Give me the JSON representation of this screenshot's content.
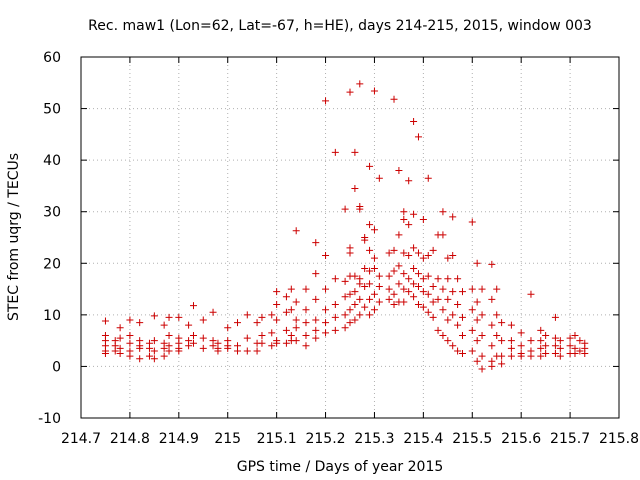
{
  "chart_data": {
    "type": "scatter",
    "title": "Rec. maw1 (Lon=62, Lat=-67, h=HE), days 214-215, 2015, window 003",
    "xlabel": "GPS time / Days of year 2015",
    "ylabel": "STEC from uqrg / TECUs",
    "xlim": [
      214.7,
      215.8
    ],
    "ylim": [
      -10,
      60
    ],
    "xticks": [
      "214.7",
      "214.8",
      "214.9",
      "215",
      "215.1",
      "215.2",
      "215.3",
      "215.4",
      "215.5",
      "215.6",
      "215.7",
      "215.8"
    ],
    "yticks": [
      "-10",
      "0",
      "10",
      "20",
      "30",
      "40",
      "50",
      "60"
    ],
    "grid": true,
    "marker": "plus",
    "color": "#cc0000",
    "series": [
      {
        "points": [
          [
            214.75,
            8.8
          ],
          [
            214.75,
            6
          ],
          [
            214.75,
            5
          ],
          [
            214.75,
            4
          ],
          [
            214.75,
            3
          ],
          [
            214.75,
            2.5
          ],
          [
            214.77,
            5
          ],
          [
            214.77,
            4
          ],
          [
            214.77,
            3
          ],
          [
            214.78,
            7.5
          ],
          [
            214.78,
            5.5
          ],
          [
            214.78,
            3.5
          ],
          [
            214.78,
            2.5
          ],
          [
            214.8,
            9
          ],
          [
            214.8,
            6
          ],
          [
            214.8,
            4.5
          ],
          [
            214.8,
            3
          ],
          [
            214.8,
            2
          ],
          [
            214.82,
            8.5
          ],
          [
            214.82,
            5
          ],
          [
            214.82,
            4
          ],
          [
            214.82,
            3.5
          ],
          [
            214.82,
            1.5
          ],
          [
            214.84,
            4.5
          ],
          [
            214.84,
            3.5
          ],
          [
            214.84,
            2
          ],
          [
            214.85,
            9.8
          ],
          [
            214.85,
            5
          ],
          [
            214.85,
            3
          ],
          [
            214.85,
            1.5
          ],
          [
            214.87,
            8
          ],
          [
            214.87,
            4.5
          ],
          [
            214.87,
            3.5
          ],
          [
            214.87,
            2
          ],
          [
            214.88,
            9.5
          ],
          [
            214.88,
            6
          ],
          [
            214.88,
            4
          ],
          [
            214.88,
            3
          ],
          [
            214.9,
            9.5
          ],
          [
            214.9,
            5.5
          ],
          [
            214.9,
            4.5
          ],
          [
            214.9,
            3.5
          ],
          [
            214.9,
            3
          ],
          [
            214.92,
            8
          ],
          [
            214.92,
            5
          ],
          [
            214.92,
            4
          ],
          [
            214.93,
            11.8
          ],
          [
            214.93,
            6
          ],
          [
            214.93,
            4.5
          ],
          [
            214.95,
            9
          ],
          [
            214.95,
            5.5
          ],
          [
            214.95,
            3.5
          ],
          [
            214.97,
            10.5
          ],
          [
            214.97,
            5
          ],
          [
            214.97,
            4
          ],
          [
            214.98,
            4.5
          ],
          [
            214.98,
            3.5
          ],
          [
            214.98,
            3
          ],
          [
            215.0,
            7.5
          ],
          [
            215.0,
            5
          ],
          [
            215.0,
            4
          ],
          [
            215.0,
            3.5
          ],
          [
            215.02,
            8.5
          ],
          [
            215.02,
            4
          ],
          [
            215.02,
            3
          ],
          [
            215.04,
            10
          ],
          [
            215.04,
            5.5
          ],
          [
            215.04,
            3
          ],
          [
            215.06,
            8.5
          ],
          [
            215.06,
            4.5
          ],
          [
            215.06,
            3
          ],
          [
            215.07,
            9.5
          ],
          [
            215.07,
            6
          ],
          [
            215.07,
            4.5
          ],
          [
            215.09,
            10
          ],
          [
            215.09,
            6.5
          ],
          [
            215.09,
            4
          ],
          [
            215.1,
            14.5
          ],
          [
            215.1,
            12
          ],
          [
            215.1,
            9
          ],
          [
            215.1,
            5
          ],
          [
            215.1,
            4.5
          ],
          [
            215.12,
            13.5
          ],
          [
            215.12,
            10.5
          ],
          [
            215.12,
            7
          ],
          [
            215.12,
            4.5
          ],
          [
            215.13,
            15
          ],
          [
            215.13,
            11
          ],
          [
            215.13,
            6
          ],
          [
            215.13,
            5
          ],
          [
            215.14,
            26.3
          ],
          [
            215.14,
            12.5
          ],
          [
            215.14,
            9
          ],
          [
            215.14,
            7.5
          ],
          [
            215.14,
            5
          ],
          [
            215.16,
            15
          ],
          [
            215.16,
            11
          ],
          [
            215.16,
            8.5
          ],
          [
            215.16,
            6
          ],
          [
            215.16,
            4
          ],
          [
            215.18,
            24
          ],
          [
            215.18,
            18
          ],
          [
            215.18,
            13
          ],
          [
            215.18,
            9
          ],
          [
            215.18,
            7
          ],
          [
            215.18,
            5.5
          ],
          [
            215.2,
            51.5
          ],
          [
            215.2,
            21.5
          ],
          [
            215.2,
            15
          ],
          [
            215.2,
            11
          ],
          [
            215.2,
            8.5
          ],
          [
            215.2,
            6.5
          ],
          [
            215.22,
            41.5
          ],
          [
            215.22,
            17
          ],
          [
            215.22,
            12
          ],
          [
            215.22,
            9.5
          ],
          [
            215.22,
            7
          ],
          [
            215.24,
            30.5
          ],
          [
            215.24,
            16.5
          ],
          [
            215.24,
            13.5
          ],
          [
            215.24,
            10
          ],
          [
            215.24,
            7.5
          ],
          [
            215.25,
            53.2
          ],
          [
            215.25,
            23
          ],
          [
            215.25,
            22
          ],
          [
            215.25,
            17.5
          ],
          [
            215.25,
            14
          ],
          [
            215.25,
            11
          ],
          [
            215.25,
            8.5
          ],
          [
            215.26,
            41.5
          ],
          [
            215.26,
            34.5
          ],
          [
            215.26,
            17.5
          ],
          [
            215.26,
            14.5
          ],
          [
            215.26,
            12
          ],
          [
            215.26,
            9
          ],
          [
            215.27,
            54.8
          ],
          [
            215.27,
            31
          ],
          [
            215.27,
            30.5
          ],
          [
            215.27,
            17
          ],
          [
            215.27,
            16
          ],
          [
            215.27,
            13
          ],
          [
            215.27,
            10
          ],
          [
            215.28,
            25
          ],
          [
            215.28,
            24.5
          ],
          [
            215.28,
            19
          ],
          [
            215.28,
            15.5
          ],
          [
            215.28,
            11.5
          ],
          [
            215.29,
            38.8
          ],
          [
            215.29,
            27.5
          ],
          [
            215.29,
            22.5
          ],
          [
            215.29,
            18.5
          ],
          [
            215.29,
            16
          ],
          [
            215.29,
            13
          ],
          [
            215.29,
            10
          ],
          [
            215.3,
            53.4
          ],
          [
            215.3,
            26.5
          ],
          [
            215.3,
            21
          ],
          [
            215.3,
            19
          ],
          [
            215.3,
            14
          ],
          [
            215.3,
            11
          ],
          [
            215.31,
            36.5
          ],
          [
            215.31,
            17.5
          ],
          [
            215.31,
            15.5
          ],
          [
            215.31,
            12.5
          ],
          [
            215.33,
            22
          ],
          [
            215.33,
            17.5
          ],
          [
            215.33,
            15
          ],
          [
            215.33,
            13
          ],
          [
            215.34,
            51.8
          ],
          [
            215.34,
            22.5
          ],
          [
            215.34,
            18.5
          ],
          [
            215.34,
            14
          ],
          [
            215.34,
            12
          ],
          [
            215.35,
            38
          ],
          [
            215.35,
            25.5
          ],
          [
            215.35,
            19.5
          ],
          [
            215.35,
            16
          ],
          [
            215.35,
            12.5
          ],
          [
            215.36,
            30
          ],
          [
            215.36,
            28.5
          ],
          [
            215.36,
            22
          ],
          [
            215.36,
            18
          ],
          [
            215.36,
            15
          ],
          [
            215.36,
            12.5
          ],
          [
            215.37,
            36
          ],
          [
            215.37,
            27.5
          ],
          [
            215.37,
            21.5
          ],
          [
            215.37,
            17
          ],
          [
            215.37,
            14.5
          ],
          [
            215.38,
            47.5
          ],
          [
            215.38,
            29.5
          ],
          [
            215.38,
            23
          ],
          [
            215.38,
            19
          ],
          [
            215.38,
            16
          ],
          [
            215.38,
            13.5
          ],
          [
            215.39,
            44.5
          ],
          [
            215.39,
            22
          ],
          [
            215.39,
            18
          ],
          [
            215.39,
            15.5
          ],
          [
            215.39,
            12
          ],
          [
            215.4,
            28.5
          ],
          [
            215.4,
            21
          ],
          [
            215.4,
            17
          ],
          [
            215.4,
            14.5
          ],
          [
            215.4,
            11.5
          ],
          [
            215.41,
            36.5
          ],
          [
            215.41,
            21.5
          ],
          [
            215.41,
            17.5
          ],
          [
            215.41,
            14
          ],
          [
            215.41,
            10.5
          ],
          [
            215.42,
            22.5
          ],
          [
            215.42,
            15.5
          ],
          [
            215.42,
            12.5
          ],
          [
            215.42,
            9.5
          ],
          [
            215.43,
            25.5
          ],
          [
            215.43,
            17
          ],
          [
            215.43,
            13
          ],
          [
            215.43,
            7
          ],
          [
            215.44,
            30
          ],
          [
            215.44,
            25.5
          ],
          [
            215.44,
            15
          ],
          [
            215.44,
            11
          ],
          [
            215.44,
            6
          ],
          [
            215.45,
            21
          ],
          [
            215.45,
            17
          ],
          [
            215.45,
            13
          ],
          [
            215.45,
            9
          ],
          [
            215.45,
            5
          ],
          [
            215.46,
            29
          ],
          [
            215.46,
            21.5
          ],
          [
            215.46,
            14.5
          ],
          [
            215.46,
            10
          ],
          [
            215.46,
            4
          ],
          [
            215.47,
            17
          ],
          [
            215.47,
            12
          ],
          [
            215.47,
            8
          ],
          [
            215.47,
            3
          ],
          [
            215.48,
            14.5
          ],
          [
            215.48,
            9.5
          ],
          [
            215.48,
            6
          ],
          [
            215.48,
            2.5
          ],
          [
            215.5,
            28
          ],
          [
            215.5,
            15
          ],
          [
            215.5,
            11
          ],
          [
            215.5,
            7
          ],
          [
            215.5,
            3
          ],
          [
            215.51,
            20
          ],
          [
            215.51,
            12.5
          ],
          [
            215.51,
            9
          ],
          [
            215.51,
            5
          ],
          [
            215.51,
            1
          ],
          [
            215.52,
            15
          ],
          [
            215.52,
            10
          ],
          [
            215.52,
            6
          ],
          [
            215.52,
            2
          ],
          [
            215.52,
            -0.5
          ],
          [
            215.54,
            19.8
          ],
          [
            215.54,
            13
          ],
          [
            215.54,
            8
          ],
          [
            215.54,
            4
          ],
          [
            215.54,
            1
          ],
          [
            215.54,
            0
          ],
          [
            215.55,
            15
          ],
          [
            215.55,
            10
          ],
          [
            215.55,
            6
          ],
          [
            215.55,
            2
          ],
          [
            215.56,
            8.5
          ],
          [
            215.56,
            5
          ],
          [
            215.56,
            2
          ],
          [
            215.56,
            0.5
          ],
          [
            215.58,
            8
          ],
          [
            215.58,
            5
          ],
          [
            215.58,
            3.5
          ],
          [
            215.58,
            2
          ],
          [
            215.6,
            6.5
          ],
          [
            215.6,
            4
          ],
          [
            215.6,
            2.5
          ],
          [
            215.6,
            2
          ],
          [
            215.62,
            14
          ],
          [
            215.62,
            5
          ],
          [
            215.62,
            3
          ],
          [
            215.62,
            2
          ],
          [
            215.64,
            7
          ],
          [
            215.64,
            5
          ],
          [
            215.64,
            3.5
          ],
          [
            215.64,
            2
          ],
          [
            215.65,
            6
          ],
          [
            215.65,
            4
          ],
          [
            215.65,
            2.5
          ],
          [
            215.67,
            9.5
          ],
          [
            215.67,
            5.5
          ],
          [
            215.67,
            4
          ],
          [
            215.67,
            2.5
          ],
          [
            215.68,
            5
          ],
          [
            215.68,
            3.5
          ],
          [
            215.68,
            2
          ],
          [
            215.7,
            5.5
          ],
          [
            215.7,
            4
          ],
          [
            215.7,
            2.5
          ],
          [
            215.71,
            6
          ],
          [
            215.71,
            3.5
          ],
          [
            215.71,
            2.5
          ],
          [
            215.72,
            5
          ],
          [
            215.72,
            3
          ],
          [
            215.73,
            4.5
          ],
          [
            215.73,
            3.5
          ],
          [
            215.73,
            2.5
          ]
        ]
      }
    ]
  }
}
